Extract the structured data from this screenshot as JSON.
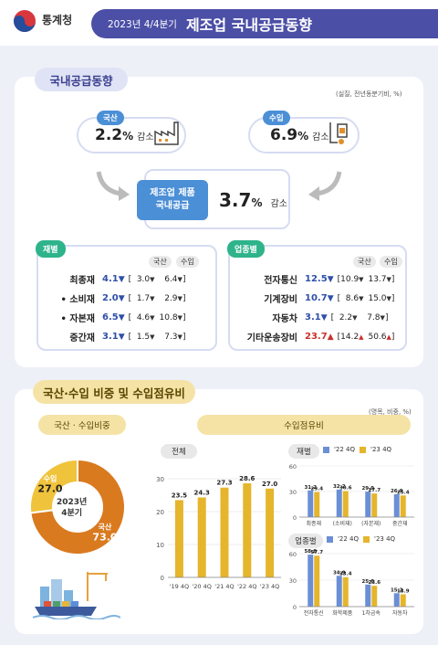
{
  "header": {
    "org": "통계청",
    "subtitle": "2023년 4/4분기",
    "title": "제조업 국내공급동향"
  },
  "section1": {
    "title": "국내공급동향",
    "unit": "(실질, 전년동분기비, %)",
    "domestic": {
      "label": "국산",
      "value": "2.2",
      "pct": "%",
      "change": "감소"
    },
    "imports": {
      "label": "수입",
      "value": "6.9",
      "pct": "%",
      "change": "감소"
    },
    "total": {
      "line1": "제조업 제품",
      "line2": "국내공급",
      "value": "3.7",
      "pct": "%",
      "change": "감소"
    },
    "goods": {
      "tag": "재별",
      "col_domestic": "국산",
      "col_import": "수입",
      "rows": [
        {
          "name": "최종재",
          "value": "4.1",
          "dom": "3.0",
          "imp": "6.4"
        },
        {
          "name": "• 소비재",
          "value": "2.0",
          "dom": "1.7",
          "imp": "2.9"
        },
        {
          "name": "• 자본재",
          "value": "6.5",
          "dom": "4.6",
          "imp": "10.8"
        },
        {
          "name": "중간재",
          "value": "3.1",
          "dom": "1.5",
          "imp": "7.3"
        }
      ]
    },
    "industry": {
      "tag": "업종별",
      "col_domestic": "국산",
      "col_import": "수입",
      "rows": [
        {
          "name": "전자통신",
          "value": "12.5",
          "dom": "10.9",
          "imp": "13.7"
        },
        {
          "name": "기계장비",
          "value": "10.7",
          "dom": "8.6",
          "imp": "15.0"
        },
        {
          "name": "자동차",
          "value": "3.1",
          "dom": "2.2",
          "imp": "7.8"
        },
        {
          "name": "기타운송장비",
          "value": "23.7",
          "dom": "14.2",
          "imp": "50.6"
        }
      ]
    }
  },
  "section2": {
    "title": "국산·수입 비중 및 수입점유비",
    "unit": "(명목, 비중, %)",
    "left_tag": "국산 · 수입비중",
    "right_tag": "수입점유비",
    "center_line1": "2023년",
    "center_line2": "4분기",
    "total_tag": "전체",
    "goods_tag": "재별",
    "industry_tag": "업종별",
    "legend_prev": "'22 4Q",
    "legend_curr": "'23 4Q"
  },
  "colors": {
    "accent": "#4b4fa6",
    "domestic": "#d97a1f",
    "import": "#f0c33c",
    "prev": "#6b8fd6",
    "curr": "#e5b52c"
  },
  "chart_data": [
    {
      "type": "pie",
      "title": "국산 · 수입비중",
      "categories": [
        "수입",
        "국산"
      ],
      "values": [
        27.0,
        73.0
      ]
    },
    {
      "type": "bar",
      "title": "전체",
      "categories": [
        "'19 4Q",
        "'20 4Q",
        "'21 4Q",
        "'22 4Q",
        "'23 4Q"
      ],
      "values": [
        23.5,
        24.3,
        27.3,
        28.6,
        27.0
      ],
      "ylim": [
        0,
        30
      ],
      "yticks": [
        0,
        10,
        20,
        30
      ]
    },
    {
      "type": "bar",
      "title": "재별",
      "categories": [
        "최종재",
        "(소비재)",
        "(자본재)",
        "중간재"
      ],
      "series": [
        {
          "name": "'22 4Q",
          "values": [
            31.2,
            32.2,
            29.9,
            26.9
          ]
        },
        {
          "name": "'23 4Q",
          "values": [
            29.4,
            30.6,
            27.7,
            25.4
          ]
        }
      ],
      "ylim": [
        0,
        60
      ],
      "yticks": [
        0,
        30,
        60
      ]
    },
    {
      "type": "bar",
      "title": "업종별",
      "categories": [
        "전자통신",
        "화학제품",
        "1차금속",
        "자동차"
      ],
      "series": [
        {
          "name": "'22 4Q",
          "values": [
            58.8,
            34.9,
            25.0,
            15.2
          ]
        },
        {
          "name": "'23 4Q",
          "values": [
            57.7,
            33.4,
            23.6,
            13.9
          ]
        }
      ],
      "ylim": [
        0,
        60
      ],
      "yticks": [
        0,
        30,
        60
      ]
    }
  ]
}
